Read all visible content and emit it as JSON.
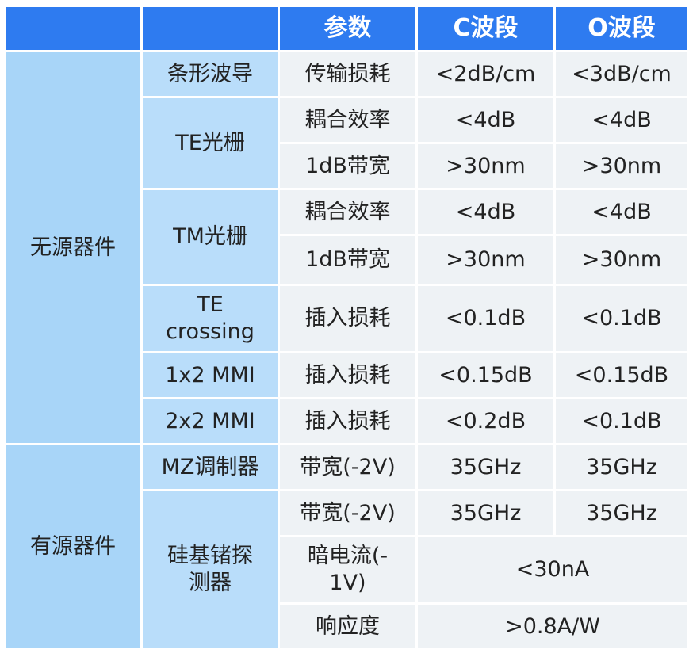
{
  "header": {
    "col1": "",
    "col2": "",
    "param": "参数",
    "c_band": "C波段",
    "o_band": "O波段"
  },
  "passive": {
    "label": "无源器件",
    "strip_waveguide": {
      "name": "条形波导",
      "param": "传输损耗",
      "c": "<2dB/cm",
      "o": "<3dB/cm"
    },
    "te_grating": {
      "name": "TE光栅",
      "rows": [
        {
          "param": "耦合效率",
          "c": "<4dB",
          "o": "<4dB"
        },
        {
          "param": "1dB带宽",
          "c": ">30nm",
          "o": ">30nm"
        }
      ]
    },
    "tm_grating": {
      "name": "TM光栅",
      "rows": [
        {
          "param": "耦合效率",
          "c": "<4dB",
          "o": "<4dB"
        },
        {
          "param": "1dB带宽",
          "c": ">30nm",
          "o": ">30nm"
        }
      ]
    },
    "te_crossing": {
      "name_line1": "TE",
      "name_line2": "crossing",
      "param": "插入损耗",
      "c": "<0.1dB",
      "o": "<0.1dB"
    },
    "mmi_1x2": {
      "name": "1x2 MMI",
      "param": "插入损耗",
      "c": "<0.15dB",
      "o": "<0.15dB"
    },
    "mmi_2x2": {
      "name": "2x2 MMI",
      "param": "插入损耗",
      "c": "<0.2dB",
      "o": "<0.1dB"
    }
  },
  "active": {
    "label": "有源器件",
    "mz_modulator": {
      "name": "MZ调制器",
      "param": "带宽(-2V)",
      "c": "35GHz",
      "o": "35GHz"
    },
    "ge_detector": {
      "name_line1": "硅基锗探",
      "name_line2": "测器",
      "bandwidth": {
        "param": "带宽(-2V)",
        "c": "35GHz",
        "o": "35GHz"
      },
      "dark_current": {
        "param_line1": "暗电流(-",
        "param_line2": "1V)",
        "value": "<30nA"
      },
      "responsivity": {
        "param": "响应度",
        "value": ">0.8A/W"
      }
    }
  }
}
